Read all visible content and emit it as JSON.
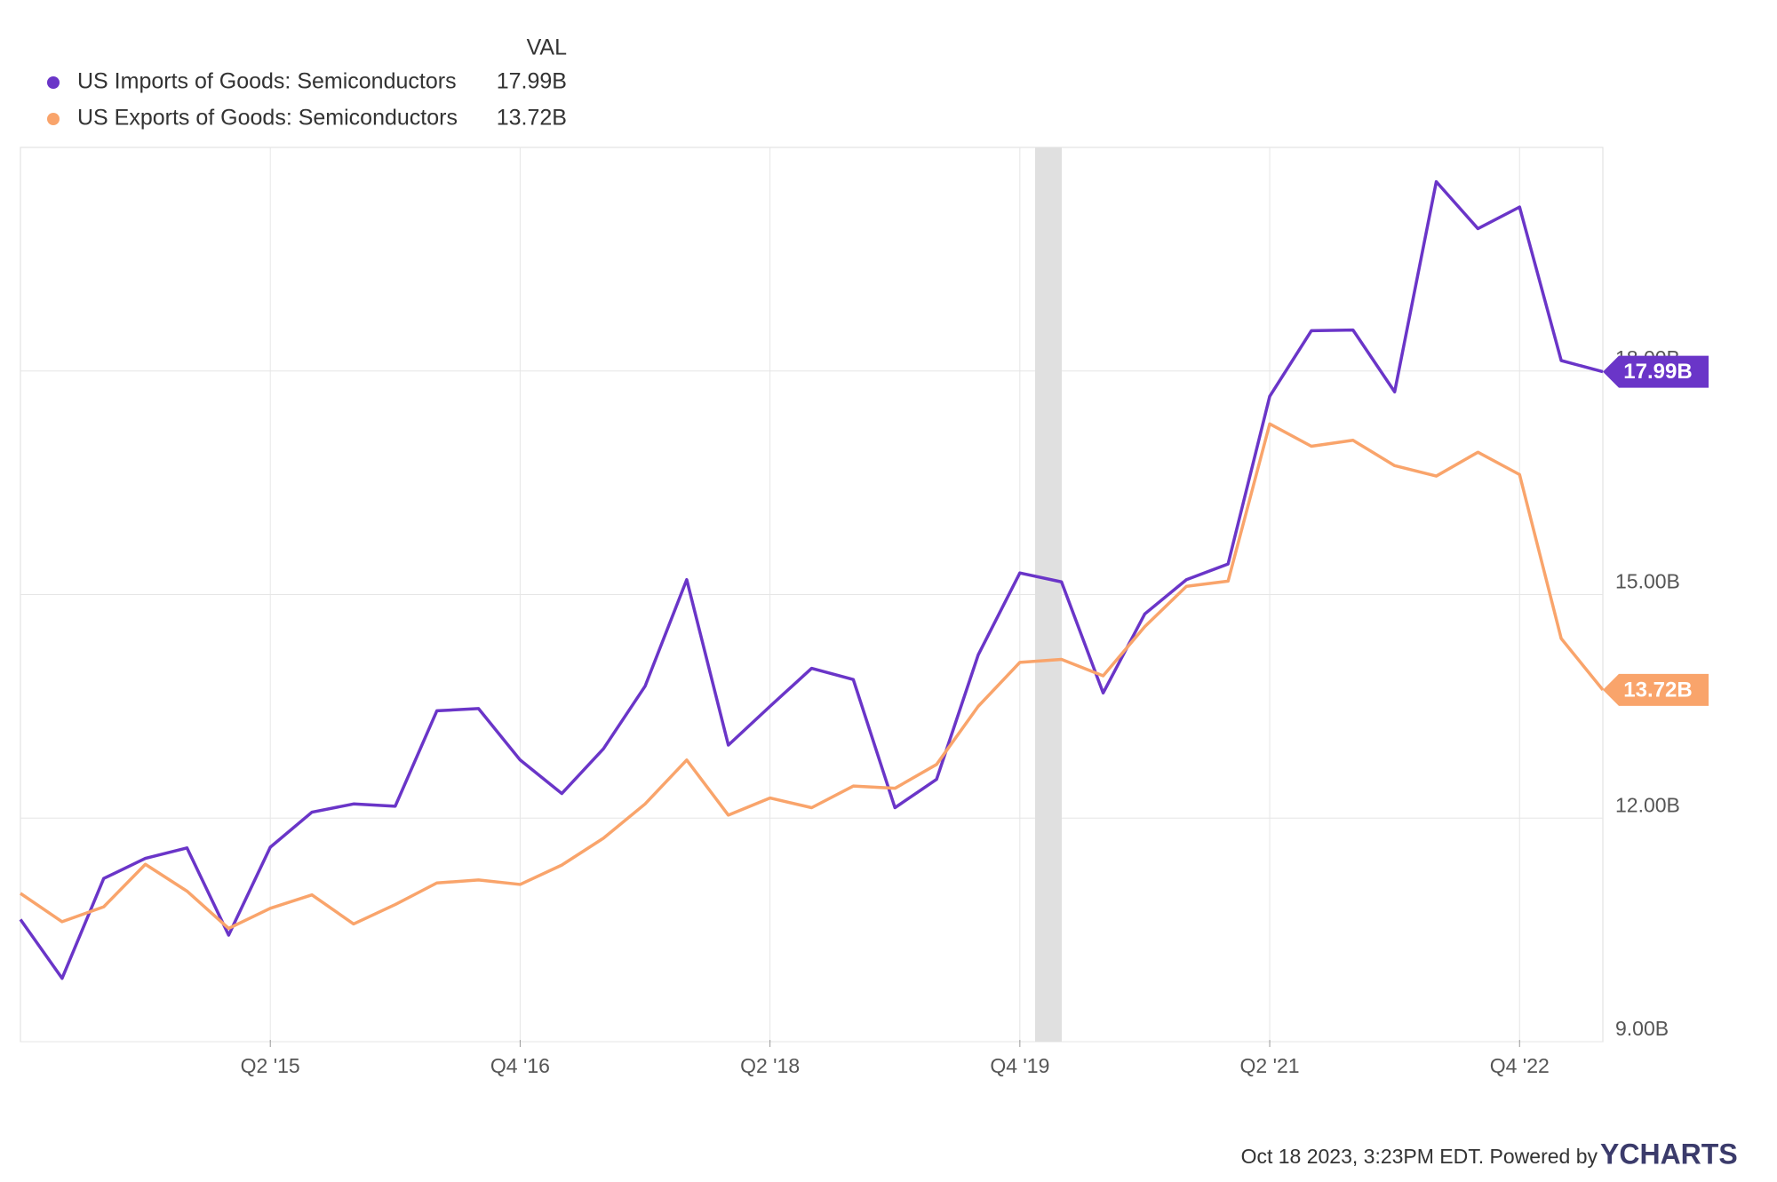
{
  "chart_data": {
    "type": "line",
    "legend_header": "VAL",
    "categories": [
      null,
      null,
      null,
      null,
      null,
      null,
      "Q2 '15",
      null,
      null,
      null,
      null,
      null,
      "Q4 '16",
      null,
      null,
      null,
      null,
      null,
      "Q2 '18",
      null,
      null,
      null,
      null,
      null,
      "Q4 '19",
      null,
      null,
      null,
      null,
      null,
      "Q2 '21",
      null,
      null,
      null,
      null,
      null,
      "Q4 '22",
      null,
      null
    ],
    "series": [
      {
        "name": "US Imports of Goods: Semiconductors",
        "color": "#6a35c8",
        "values": [
          10.64,
          9.85,
          11.19,
          11.46,
          11.6,
          10.43,
          11.61,
          12.08,
          12.19,
          12.16,
          13.44,
          13.47,
          12.78,
          12.33,
          12.93,
          13.77,
          15.2,
          12.98,
          13.5,
          14.01,
          13.86,
          12.14,
          12.52,
          14.19,
          15.29,
          15.17,
          13.68,
          14.74,
          15.2,
          15.41,
          17.66,
          18.54,
          18.55,
          17.72,
          20.54,
          19.91,
          20.2,
          18.14,
          17.99
        ],
        "value_labels": [
          null,
          null,
          null,
          null,
          null,
          null,
          null,
          null,
          null,
          null,
          null,
          null,
          null,
          null,
          null,
          null,
          null,
          null,
          null,
          null,
          null,
          null,
          null,
          null,
          null,
          null,
          null,
          null,
          null,
          null,
          null,
          null,
          null,
          null,
          null,
          null,
          null,
          null,
          "17.99B"
        ]
      },
      {
        "name": "US Exports of Goods: Semiconductors",
        "color": "#f9a46b",
        "values": [
          10.99,
          10.61,
          10.81,
          11.38,
          11.02,
          10.52,
          10.79,
          10.97,
          10.58,
          10.84,
          11.13,
          11.17,
          11.11,
          11.37,
          11.73,
          12.19,
          12.78,
          12.04,
          12.27,
          12.14,
          12.43,
          12.4,
          12.72,
          13.5,
          14.09,
          14.13,
          13.91,
          14.57,
          15.11,
          15.18,
          17.29,
          16.99,
          17.07,
          16.73,
          16.59,
          16.91,
          16.61,
          14.41,
          13.72
        ],
        "value_labels": [
          null,
          null,
          null,
          null,
          null,
          null,
          null,
          null,
          null,
          null,
          null,
          null,
          null,
          null,
          null,
          null,
          null,
          null,
          null,
          null,
          null,
          null,
          null,
          null,
          null,
          null,
          null,
          null,
          null,
          null,
          null,
          null,
          null,
          null,
          null,
          null,
          null,
          null,
          "13.72B"
        ]
      }
    ],
    "ylim": [
      9,
      21
    ],
    "yticks": [
      {
        "value": 9,
        "label": "9.00B"
      },
      {
        "value": 12,
        "label": "12.00B"
      },
      {
        "value": 15,
        "label": "15.00B"
      },
      {
        "value": 18,
        "label": "18.00B"
      }
    ],
    "grid": true,
    "footer": "Oct 18 2023, 3:23PM EDT. Powered by",
    "brand": "YCHARTS"
  }
}
